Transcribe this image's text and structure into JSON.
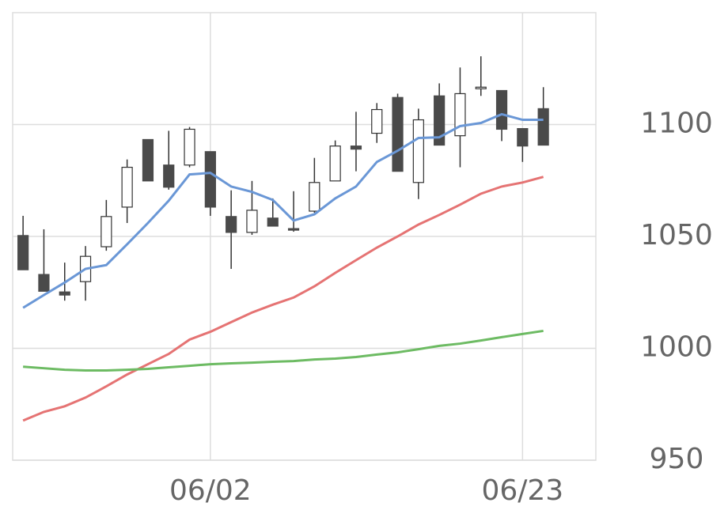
{
  "chart_data": {
    "type": "candlestick",
    "categories": [
      null,
      null,
      null,
      null,
      null,
      null,
      null,
      null,
      null,
      "06/02",
      null,
      null,
      null,
      null,
      null,
      null,
      null,
      null,
      null,
      null,
      null,
      null,
      null,
      null,
      "06/23",
      null
    ],
    "open": [
      1050.4,
      1033.0,
      1025.2,
      1029.8,
      1045.4,
      1063.1,
      1093.3,
      1081.9,
      1081.9,
      1087.9,
      1058.9,
      1051.8,
      1058.2,
      1053.5,
      1061.3,
      1074.8,
      1090.4,
      1096.1,
      1112.1,
      1074.1,
      1112.8,
      1095.0,
      1116.0,
      1115.2,
      1098.2,
      1107.1
    ],
    "high": [
      1059.2,
      1053.2,
      1038.3,
      1045.7,
      1066.3,
      1084.4,
      1093.3,
      1097.2,
      1098.9,
      1087.9,
      1070.6,
      1074.8,
      1067.0,
      1070.2,
      1085.1,
      1092.9,
      1105.7,
      1109.6,
      1113.8,
      1107.1,
      1118.4,
      1125.5,
      1130.5,
      1115.2,
      1098.2,
      1116.7
    ],
    "low": [
      1035.1,
      1025.5,
      1021.3,
      1021.3,
      1043.6,
      1056.0,
      1074.8,
      1070.9,
      1080.9,
      1059.2,
      1035.5,
      1050.7,
      1054.6,
      1052.1,
      1060.6,
      1074.8,
      1079.1,
      1091.8,
      1079.1,
      1066.7,
      1090.8,
      1080.9,
      1112.8,
      1092.6,
      1083.3,
      1090.8
    ],
    "close": [
      1035.1,
      1025.5,
      1023.8,
      1041.1,
      1058.9,
      1080.9,
      1074.8,
      1072.0,
      1097.9,
      1063.1,
      1051.8,
      1061.7,
      1054.6,
      1052.8,
      1074.1,
      1090.4,
      1089.0,
      1106.7,
      1079.1,
      1102.1,
      1090.8,
      1113.8,
      1116.7,
      1097.9,
      1090.4,
      1090.8
    ],
    "up_color": "#ffffff",
    "down_color": "#4a4a4a",
    "lines": [
      {
        "color": "#6a97d6",
        "values": [
          1018.1,
          1023.8,
          1029.4,
          1035.5,
          1037.2,
          1046.5,
          1056.0,
          1066.0,
          1077.7,
          1078.4,
          1072.3,
          1069.9,
          1066.3,
          1057.1,
          1059.9,
          1067.0,
          1072.3,
          1083.3,
          1088.3,
          1094.0,
          1094.3,
          1099.3,
          1100.7,
          1104.6,
          1102.1,
          1102.1
        ]
      },
      {
        "color": "#e57373",
        "values": [
          967.7,
          971.6,
          974.1,
          978.0,
          983.0,
          988.3,
          992.9,
          997.5,
          1003.9,
          1007.4,
          1011.7,
          1016.0,
          1019.5,
          1022.7,
          1027.7,
          1033.7,
          1039.4,
          1045.0,
          1050.0,
          1055.3,
          1059.6,
          1064.2,
          1069.1,
          1072.3,
          1074.1,
          1076.6
        ]
      },
      {
        "color": "#6dbb63",
        "values": [
          991.8,
          991.1,
          990.4,
          990.1,
          990.1,
          990.4,
          990.8,
          991.5,
          992.2,
          992.9,
          993.3,
          993.6,
          994.0,
          994.3,
          995.0,
          995.4,
          996.1,
          997.2,
          998.2,
          999.6,
          1001.1,
          1002.1,
          1003.5,
          1005.0,
          1006.4,
          1007.8
        ]
      }
    ],
    "ylim": [
      950,
      1150
    ],
    "yticks": [
      950,
      1000,
      1050,
      1100
    ],
    "grid": true
  }
}
